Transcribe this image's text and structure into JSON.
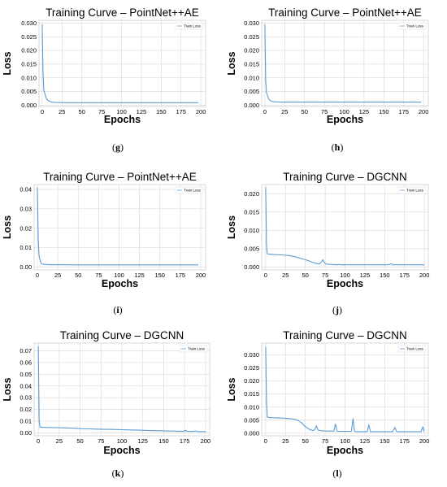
{
  "chart_data": [
    {
      "type": "line",
      "caption": "(g)",
      "title": "Training Curve – PointNet++AE",
      "xlabel": "Epochs",
      "ylabel": "Loss",
      "xlim": [
        -4,
        206
      ],
      "ylim": [
        -0.0005,
        0.031
      ],
      "xticks": [
        "0",
        "25",
        "50",
        "75",
        "100",
        "125",
        "150",
        "175",
        "200"
      ],
      "yticks": [
        "0.000",
        "0.005",
        "0.010",
        "0.015",
        "0.020",
        "0.025",
        "0.030"
      ],
      "grid": true,
      "legend_position": "top-right",
      "series": [
        {
          "name": "Train Loss",
          "color": "#5a9bd5",
          "x": [
            0,
            1,
            2,
            3,
            4,
            5,
            6,
            8,
            10,
            12,
            15,
            20,
            30,
            60,
            100,
            150,
            197
          ],
          "y": [
            0.0295,
            0.012,
            0.0055,
            0.0045,
            0.0035,
            0.0026,
            0.0021,
            0.0016,
            0.0013,
            0.0011,
            0.001,
            0.00095,
            0.0009,
            0.0009,
            0.0009,
            0.0009,
            0.0009
          ]
        }
      ]
    },
    {
      "type": "line",
      "caption": "(h)",
      "title": "Training Curve – PointNet++AE",
      "xlabel": "Epochs",
      "ylabel": "Loss",
      "xlim": [
        -4,
        206
      ],
      "ylim": [
        -0.0005,
        0.031
      ],
      "xticks": [
        "0",
        "25",
        "50",
        "75",
        "100",
        "125",
        "150",
        "175",
        "200"
      ],
      "yticks": [
        "0.000",
        "0.005",
        "0.010",
        "0.015",
        "0.020",
        "0.025",
        "0.030"
      ],
      "grid": true,
      "legend_position": "top-right",
      "series": [
        {
          "name": "Train Loss",
          "color": "#5a9bd5",
          "x": [
            0,
            1,
            2,
            3,
            4,
            5,
            6,
            8,
            10,
            14,
            20,
            40,
            80,
            120,
            160,
            197
          ],
          "y": [
            0.0295,
            0.009,
            0.0045,
            0.0038,
            0.003,
            0.0022,
            0.0018,
            0.0015,
            0.0013,
            0.0012,
            0.0011,
            0.0011,
            0.0011,
            0.0011,
            0.0011,
            0.0011
          ]
        }
      ]
    },
    {
      "type": "line",
      "caption": "(i)",
      "title": "Training Curve – PointNet++AE",
      "xlabel": "Epochs",
      "ylabel": "Loss",
      "xlim": [
        -4,
        206
      ],
      "ylim": [
        -0.0015,
        0.0425
      ],
      "xticks": [
        "0",
        "25",
        "50",
        "75",
        "100",
        "125",
        "150",
        "175",
        "200"
      ],
      "yticks": [
        "0.00",
        "0.01",
        "0.02",
        "0.03",
        "0.04"
      ],
      "grid": true,
      "legend_position": "top-right",
      "series": [
        {
          "name": "Train Loss",
          "color": "#5a9bd5",
          "x": [
            0,
            1,
            2,
            3,
            4,
            5,
            7,
            10,
            15,
            25,
            50,
            100,
            150,
            197
          ],
          "y": [
            0.041,
            0.015,
            0.006,
            0.004,
            0.0025,
            0.0018,
            0.0014,
            0.0013,
            0.0012,
            0.0012,
            0.0011,
            0.0011,
            0.0011,
            0.0011
          ]
        }
      ]
    },
    {
      "type": "line",
      "caption": "(j)",
      "title": "Training Curve – DGCNN",
      "xlabel": "Epochs",
      "ylabel": "Loss",
      "xlim": [
        -5,
        205
      ],
      "ylim": [
        -0.0008,
        0.0225
      ],
      "xticks": [
        "0",
        "25",
        "50",
        "75",
        "100",
        "125",
        "150",
        "175",
        "200"
      ],
      "yticks": [
        "0.000",
        "0.005",
        "0.010",
        "0.015",
        "0.020"
      ],
      "grid": true,
      "legend_position": "top-right",
      "series": [
        {
          "name": "Train Loss",
          "color": "#5a9bd5",
          "x": [
            0,
            1,
            2,
            5,
            10,
            20,
            30,
            35,
            40,
            45,
            50,
            55,
            60,
            65,
            68,
            70,
            72,
            74,
            76,
            80,
            90,
            92,
            94,
            100,
            110,
            130,
            150,
            155,
            158,
            160,
            170,
            185,
            200
          ],
          "y": [
            0.0218,
            0.006,
            0.0036,
            0.0035,
            0.0034,
            0.0033,
            0.0031,
            0.0029,
            0.0026,
            0.0023,
            0.002,
            0.0016,
            0.0012,
            0.0009,
            0.0009,
            0.0013,
            0.002,
            0.0012,
            0.0008,
            0.0007,
            0.0006,
            0.0007,
            0.0006,
            0.0006,
            0.0006,
            0.0006,
            0.0006,
            0.0006,
            0.0009,
            0.0006,
            0.0006,
            0.0006,
            0.0006
          ]
        }
      ]
    },
    {
      "type": "line",
      "caption": "(k)",
      "title": "Training Curve – DGCNN",
      "xlabel": "Epochs",
      "ylabel": "Loss",
      "xlim": [
        -5,
        205
      ],
      "ylim": [
        -0.0025,
        0.0765
      ],
      "xticks": [
        "0",
        "25",
        "50",
        "75",
        "100",
        "125",
        "150",
        "175",
        "200"
      ],
      "yticks": [
        "0.00",
        "0.01",
        "0.02",
        "0.03",
        "0.04",
        "0.05",
        "0.06",
        "0.07"
      ],
      "grid": true,
      "legend_position": "top-right",
      "series": [
        {
          "name": "Train Loss",
          "color": "#5a9bd5",
          "x": [
            0,
            1,
            2,
            5,
            10,
            20,
            30,
            40,
            50,
            60,
            70,
            80,
            90,
            100,
            110,
            120,
            130,
            140,
            150,
            160,
            170,
            175,
            176,
            178,
            180,
            185,
            188,
            190,
            195,
            200
          ],
          "y": [
            0.074,
            0.01,
            0.005,
            0.0047,
            0.0046,
            0.0045,
            0.0043,
            0.004,
            0.0036,
            0.0034,
            0.0032,
            0.003,
            0.0029,
            0.0027,
            0.0025,
            0.0023,
            0.0021,
            0.0019,
            0.0017,
            0.0015,
            0.0014,
            0.0014,
            0.0022,
            0.0013,
            0.0013,
            0.0012,
            0.0017,
            0.0011,
            0.0011,
            0.001
          ]
        }
      ]
    },
    {
      "type": "line",
      "caption": "(l)",
      "title": "Training Curve – DGCNN",
      "xlabel": "Epochs",
      "ylabel": "Loss",
      "xlim": [
        -5,
        205
      ],
      "ylim": [
        -0.001,
        0.0345
      ],
      "xticks": [
        "0",
        "25",
        "50",
        "75",
        "100",
        "125",
        "150",
        "175",
        "200"
      ],
      "yticks": [
        "0.000",
        "0.005",
        "0.010",
        "0.015",
        "0.020",
        "0.025",
        "0.030"
      ],
      "grid": true,
      "legend_position": "top-right",
      "series": [
        {
          "name": "Train Loss",
          "color": "#5a9bd5",
          "x": [
            0,
            1,
            2,
            5,
            10,
            20,
            30,
            35,
            40,
            45,
            50,
            55,
            60,
            62,
            64,
            66,
            70,
            80,
            86,
            88,
            90,
            92,
            95,
            105,
            108,
            110,
            112,
            114,
            120,
            128,
            130,
            132,
            134,
            140,
            150,
            160,
            163,
            165,
            167,
            170,
            180,
            190,
            196,
            198,
            200
          ],
          "y": [
            0.033,
            0.012,
            0.0062,
            0.006,
            0.0059,
            0.0058,
            0.0056,
            0.0054,
            0.005,
            0.004,
            0.0025,
            0.0015,
            0.001,
            0.0015,
            0.0028,
            0.0012,
            0.0009,
            0.0008,
            0.0008,
            0.0035,
            0.0008,
            0.0007,
            0.0007,
            0.0007,
            0.0007,
            0.0055,
            0.0007,
            0.0006,
            0.0006,
            0.0006,
            0.0032,
            0.0006,
            0.0006,
            0.0006,
            0.0006,
            0.0006,
            0.0022,
            0.0006,
            0.0006,
            0.0006,
            0.0006,
            0.0006,
            0.0006,
            0.0024,
            0.0006
          ]
        }
      ]
    }
  ]
}
